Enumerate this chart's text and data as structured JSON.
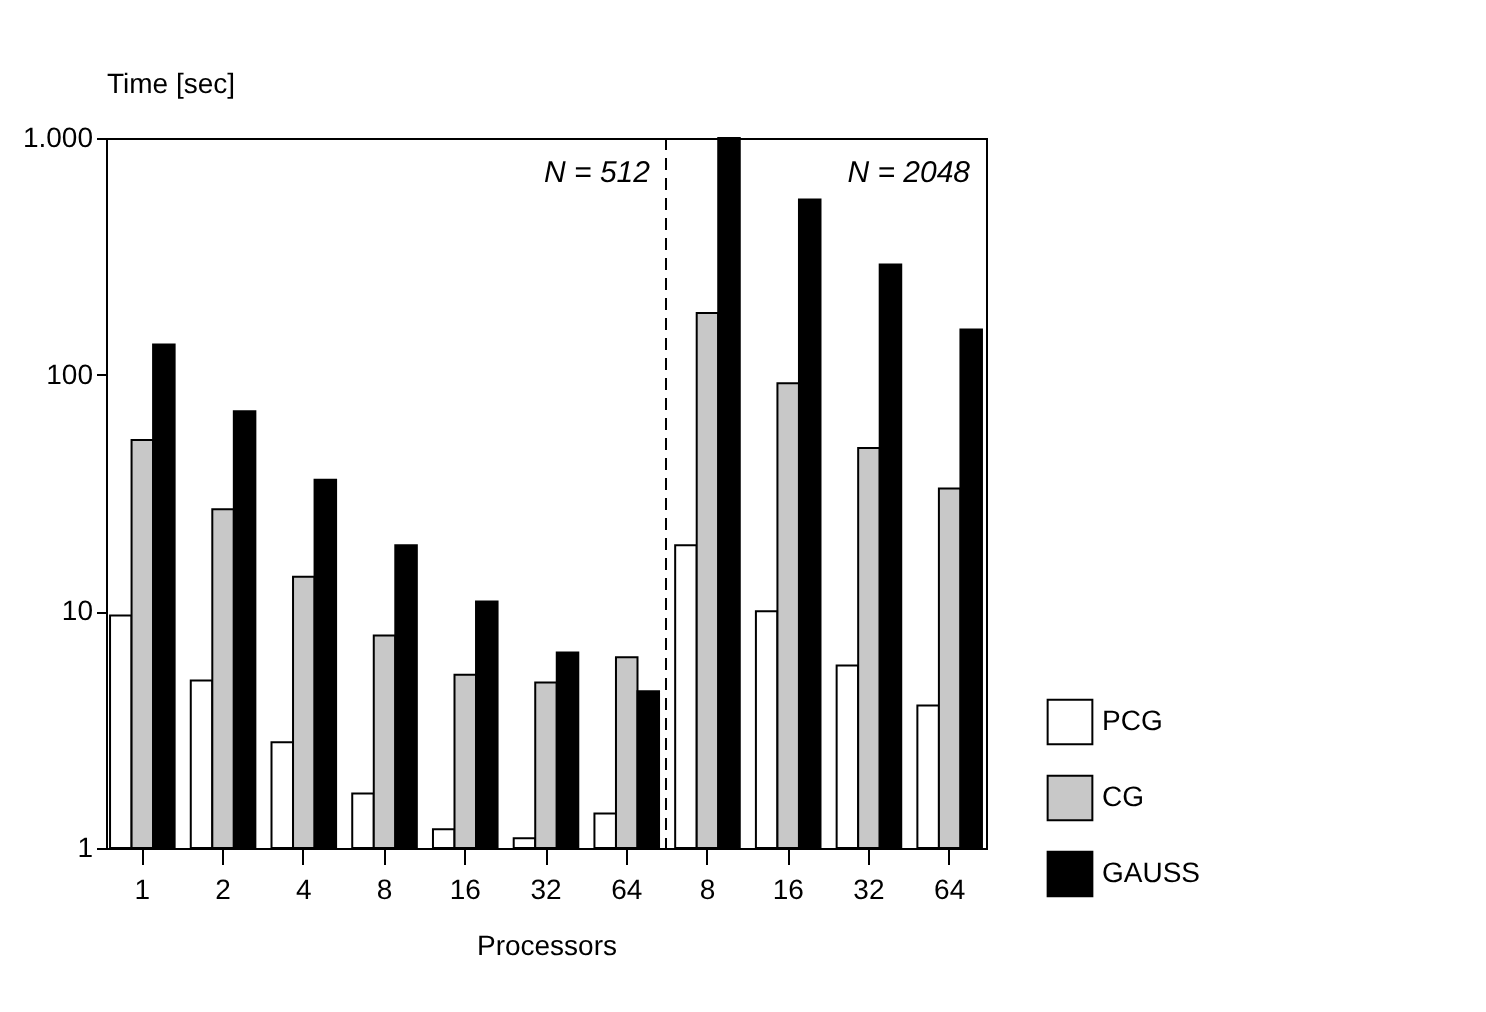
{
  "chart_data": {
    "type": "bar",
    "ylabel": "Time [sec]",
    "xlabel": "Processors",
    "categories": [
      "1",
      "2",
      "4",
      "8",
      "16",
      "32",
      "64",
      "8",
      "16",
      "32",
      "64"
    ],
    "series": [
      {
        "name": "PCG",
        "color": "#ffffff",
        "values": [
          9.6,
          5.1,
          2.8,
          1.7,
          1.2,
          1.1,
          1.4,
          19,
          10,
          5.9,
          4.0
        ]
      },
      {
        "name": "CG",
        "color": "#c8c8c8",
        "values": [
          53,
          27,
          14,
          7.9,
          5.4,
          5.0,
          6.4,
          182,
          92,
          49,
          33
        ]
      },
      {
        "name": "GAUSS",
        "color": "#000000",
        "values": [
          134,
          70,
          36,
          19,
          11,
          6.7,
          4.6,
          1000,
          550,
          292,
          155
        ]
      }
    ],
    "log": "y",
    "ylim": [
      1,
      1000
    ],
    "yticks": [
      1,
      10,
      100,
      {
        "value": 1000,
        "label": "1.000"
      }
    ],
    "annotations": [
      "N = 512",
      "N = 2048"
    ],
    "legend": "bottom right",
    "grid": false
  }
}
